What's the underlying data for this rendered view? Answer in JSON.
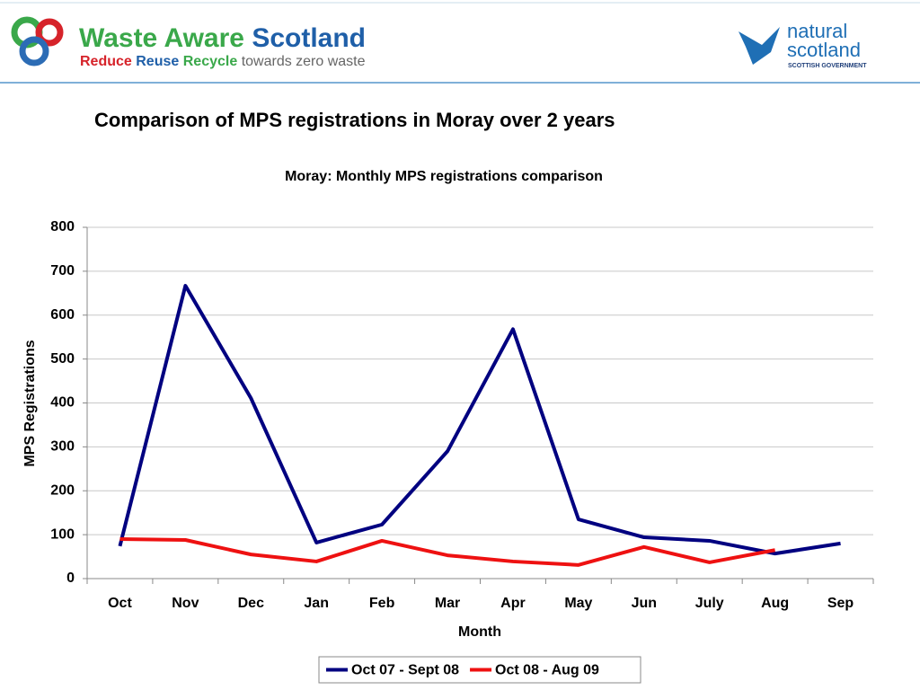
{
  "header": {
    "brand_main": "Waste Aware",
    "brand_place": "Scotland",
    "tag_reduce": "Reduce",
    "tag_reuse": "Reuse",
    "tag_recycle": "Recycle",
    "tag_rest": "towards zero waste",
    "partner_1": "natural",
    "partner_2": "scotland",
    "partner_3": "SCOTTISH GOVERNMENT"
  },
  "slide_title": "Comparison of MPS registrations in Moray over 2 years",
  "chart_data": {
    "type": "line",
    "title": "Moray: Monthly MPS registrations comparison",
    "x_label": "Month",
    "y_label": "MPS Registrations",
    "categories": [
      "Oct",
      "Nov",
      "Dec",
      "Jan",
      "Feb",
      "Mar",
      "Apr",
      "May",
      "Jun",
      "July",
      "Aug",
      "Sep"
    ],
    "series": [
      {
        "name": "Oct 07 - Sept 08",
        "color": "#000080",
        "values": [
          74,
          667,
          411,
          82,
          123,
          290,
          568,
          135,
          94,
          86,
          57,
          80
        ]
      },
      {
        "name": "Oct 08 - Aug 09",
        "color": "#ee1111",
        "values": [
          90,
          88,
          55,
          39,
          86,
          53,
          39,
          31,
          72,
          37,
          65,
          null
        ]
      }
    ],
    "ylim": [
      0,
      800
    ],
    "yticks": [
      0,
      100,
      200,
      300,
      400,
      500,
      600,
      700,
      800
    ],
    "grid": true,
    "legend": "bottom"
  }
}
